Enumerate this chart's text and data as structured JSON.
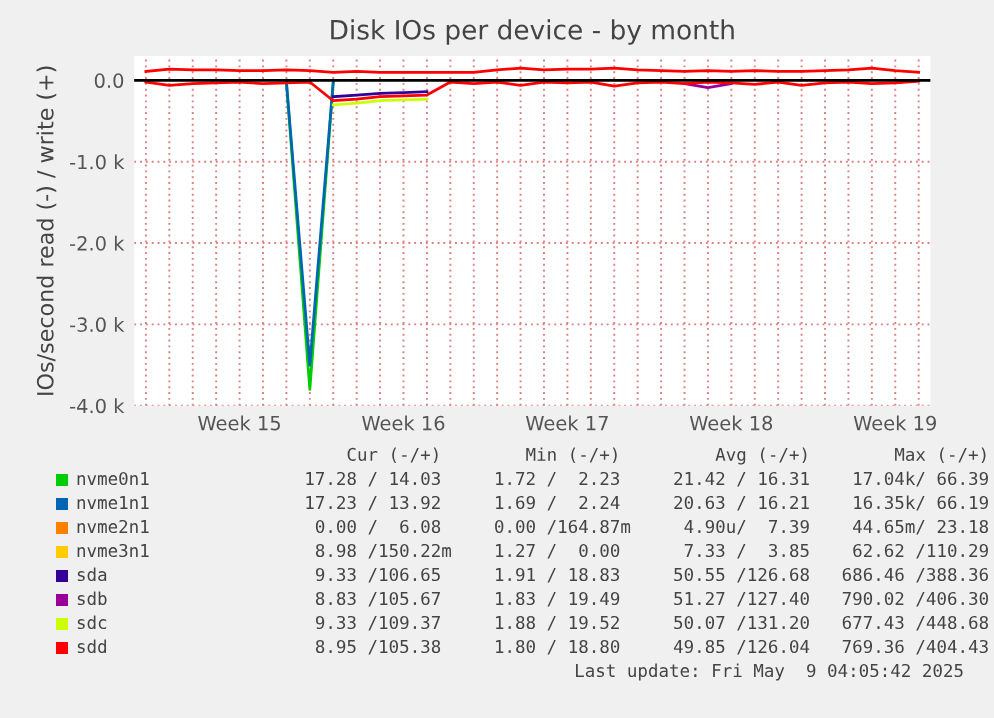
{
  "chart_data": {
    "type": "line",
    "title": "Disk IOs per device - by month",
    "ylabel": "IOs/second read (-) / write (+)",
    "categories": [
      null,
      null,
      null,
      null,
      "Week 15",
      null,
      null,
      null,
      null,
      null,
      null,
      "Week 16",
      null,
      null,
      null,
      null,
      null,
      null,
      "Week 17",
      null,
      null,
      null,
      null,
      null,
      null,
      "Week 18",
      null,
      null,
      null,
      null,
      null,
      null,
      "Week 19",
      null
    ],
    "ylim": [
      -4000,
      300
    ],
    "yticks": [
      {
        "value": -4000,
        "label": "-4.0 k"
      },
      {
        "value": -3000,
        "label": "-3.0 k"
      },
      {
        "value": -2000,
        "label": "-2.0 k"
      },
      {
        "value": -1000,
        "label": "-1.0 k"
      },
      {
        "value": 0,
        "label": "0.0"
      }
    ],
    "grid": true,
    "legend": "bottom",
    "ref_lines": [
      {
        "axis": "y",
        "value": 0,
        "color": "#000000"
      }
    ],
    "series": [
      {
        "color": "#00cc00",
        "values": [
          null,
          null,
          null,
          null,
          null,
          null,
          -20,
          -3800,
          -20,
          null,
          null,
          null,
          null,
          null,
          null,
          null,
          null,
          null,
          null,
          null,
          null,
          null,
          null,
          null,
          null,
          null,
          null,
          null,
          null,
          null,
          null,
          null,
          null,
          null
        ]
      },
      {
        "color": "#0066b3",
        "values": [
          null,
          null,
          null,
          null,
          null,
          null,
          -20,
          -3500,
          -20,
          null,
          null,
          null,
          null,
          null,
          null,
          null,
          null,
          null,
          null,
          null,
          null,
          null,
          null,
          null,
          null,
          null,
          null,
          null,
          null,
          null,
          null,
          null,
          null,
          null
        ]
      },
      {
        "name": "nvme0n1",
        "color": "#00cc00",
        "values": [
          null,
          null,
          null,
          null,
          null,
          null,
          null,
          null,
          null,
          null,
          null,
          null,
          null,
          null,
          null,
          null,
          null,
          null,
          null,
          null,
          null,
          null,
          null,
          null,
          null,
          null,
          null,
          null,
          null,
          null,
          null,
          null,
          null,
          null
        ]
      },
      {
        "name": "nvme1n1",
        "color": "#0066b3",
        "values": [
          null,
          null,
          null,
          null,
          null,
          null,
          null,
          null,
          null,
          null,
          null,
          null,
          null,
          null,
          null,
          null,
          null,
          null,
          null,
          null,
          null,
          null,
          null,
          null,
          null,
          null,
          null,
          null,
          null,
          null,
          null,
          null,
          null,
          null
        ]
      },
      {
        "name": "nvme2n1",
        "color": "#ff8000",
        "values": [
          null,
          null,
          null,
          null,
          null,
          null,
          null,
          null,
          null,
          null,
          null,
          null,
          null,
          null,
          null,
          null,
          null,
          null,
          null,
          null,
          null,
          null,
          null,
          null,
          null,
          null,
          null,
          null,
          null,
          null,
          null,
          null,
          null,
          null
        ]
      },
      {
        "name": "nvme3n1",
        "color": "#ffcc00",
        "values": [
          null,
          null,
          null,
          null,
          null,
          null,
          null,
          null,
          null,
          null,
          null,
          null,
          null,
          null,
          null,
          null,
          null,
          null,
          null,
          null,
          null,
          null,
          null,
          null,
          null,
          null,
          null,
          null,
          null,
          null,
          null,
          null,
          null,
          null
        ]
      },
      {
        "name": "sda",
        "color": "#330099",
        "values": [
          null,
          null,
          null,
          null,
          null,
          null,
          null,
          null,
          null,
          null,
          null,
          null,
          null,
          null,
          null,
          null,
          null,
          null,
          null,
          null,
          null,
          null,
          null,
          null,
          null,
          null,
          null,
          null,
          null,
          null,
          null,
          null,
          null,
          null
        ]
      },
      {
        "color": "#330099",
        "values": [
          null,
          null,
          null,
          null,
          null,
          null,
          null,
          null,
          -200,
          -180,
          -160,
          -150,
          -140,
          null,
          null,
          null,
          null,
          null,
          null,
          null,
          null,
          null,
          null,
          null,
          null,
          null,
          null,
          null,
          null,
          null,
          null,
          null,
          null,
          null
        ]
      },
      {
        "name": "sdb",
        "color": "#990099",
        "values": [
          null,
          null,
          null,
          null,
          null,
          null,
          null,
          null,
          null,
          null,
          null,
          null,
          null,
          null,
          null,
          null,
          null,
          null,
          null,
          null,
          null,
          null,
          null,
          null,
          null,
          null,
          null,
          null,
          null,
          null,
          null,
          null,
          null,
          null
        ]
      },
      {
        "color": "#990099",
        "values": [
          null,
          null,
          null,
          null,
          null,
          null,
          null,
          null,
          null,
          null,
          null,
          null,
          null,
          null,
          null,
          null,
          null,
          null,
          null,
          null,
          null,
          null,
          null,
          -40,
          -90,
          -40,
          null,
          null,
          null,
          null,
          null,
          null,
          null,
          null
        ]
      },
      {
        "name": "sdc",
        "color": "#ccff00",
        "values": [
          null,
          null,
          null,
          null,
          null,
          null,
          null,
          null,
          null,
          null,
          null,
          null,
          null,
          null,
          null,
          null,
          null,
          null,
          null,
          null,
          null,
          null,
          null,
          null,
          null,
          null,
          null,
          null,
          null,
          null,
          null,
          null,
          null,
          null
        ]
      },
      {
        "color": "#ccff00",
        "values": [
          null,
          null,
          null,
          null,
          null,
          null,
          null,
          null,
          -300,
          -280,
          -250,
          -240,
          -230,
          null,
          null,
          null,
          null,
          null,
          null,
          null,
          null,
          null,
          null,
          null,
          null,
          null,
          null,
          null,
          null,
          null,
          null,
          null,
          null,
          null
        ]
      },
      {
        "name": "sdd",
        "color": "#ff0000",
        "values": [
          110,
          140,
          130,
          130,
          120,
          120,
          130,
          120,
          100,
          110,
          100,
          100,
          100,
          100,
          100,
          130,
          150,
          130,
          140,
          140,
          150,
          130,
          120,
          110,
          120,
          110,
          120,
          110,
          110,
          120,
          130,
          150,
          120,
          100
        ]
      },
      {
        "color": "#ff0000",
        "values": [
          -20,
          -60,
          -40,
          -30,
          -20,
          -40,
          -30,
          -20,
          -250,
          -230,
          -200,
          -190,
          -180,
          -20,
          -40,
          -20,
          -60,
          -20,
          -30,
          -20,
          -70,
          -30,
          -20,
          -40,
          -20,
          -30,
          -50,
          -20,
          -60,
          -30,
          -20,
          -40,
          -30,
          -10
        ]
      }
    ],
    "annotations": [
      "      Cur (-/+)        Min (-/+)         Avg (-/+)        Max (-/+)",
      "  17.28 / 14.03     1.72 /  2.23     21.42 / 16.31    17.04k/ 66.39",
      "  17.23 / 13.92     1.69 /  2.24     20.63 / 16.21    16.35k/ 66.19",
      "   0.00 /  6.08     0.00 /164.87m     4.90u/  7.39    44.65m/ 23.18",
      "   8.98 /150.22m    1.27 /  0.00      7.33 /  3.85    62.62 /110.29",
      "   9.33 /106.65     1.91 / 18.83     50.55 /126.68   686.46 /388.36",
      "   8.83 /105.67     1.83 / 19.49     51.27 /127.40   790.02 /406.30",
      "   9.33 /109.37     1.88 / 19.52     50.07 /131.20   677.43 /448.68",
      "   8.95 /105.38     1.80 / 18.80     49.85 /126.04   769.36 /404.43",
      "Last update: Fri May  9 04:05:42 2025"
    ]
  }
}
